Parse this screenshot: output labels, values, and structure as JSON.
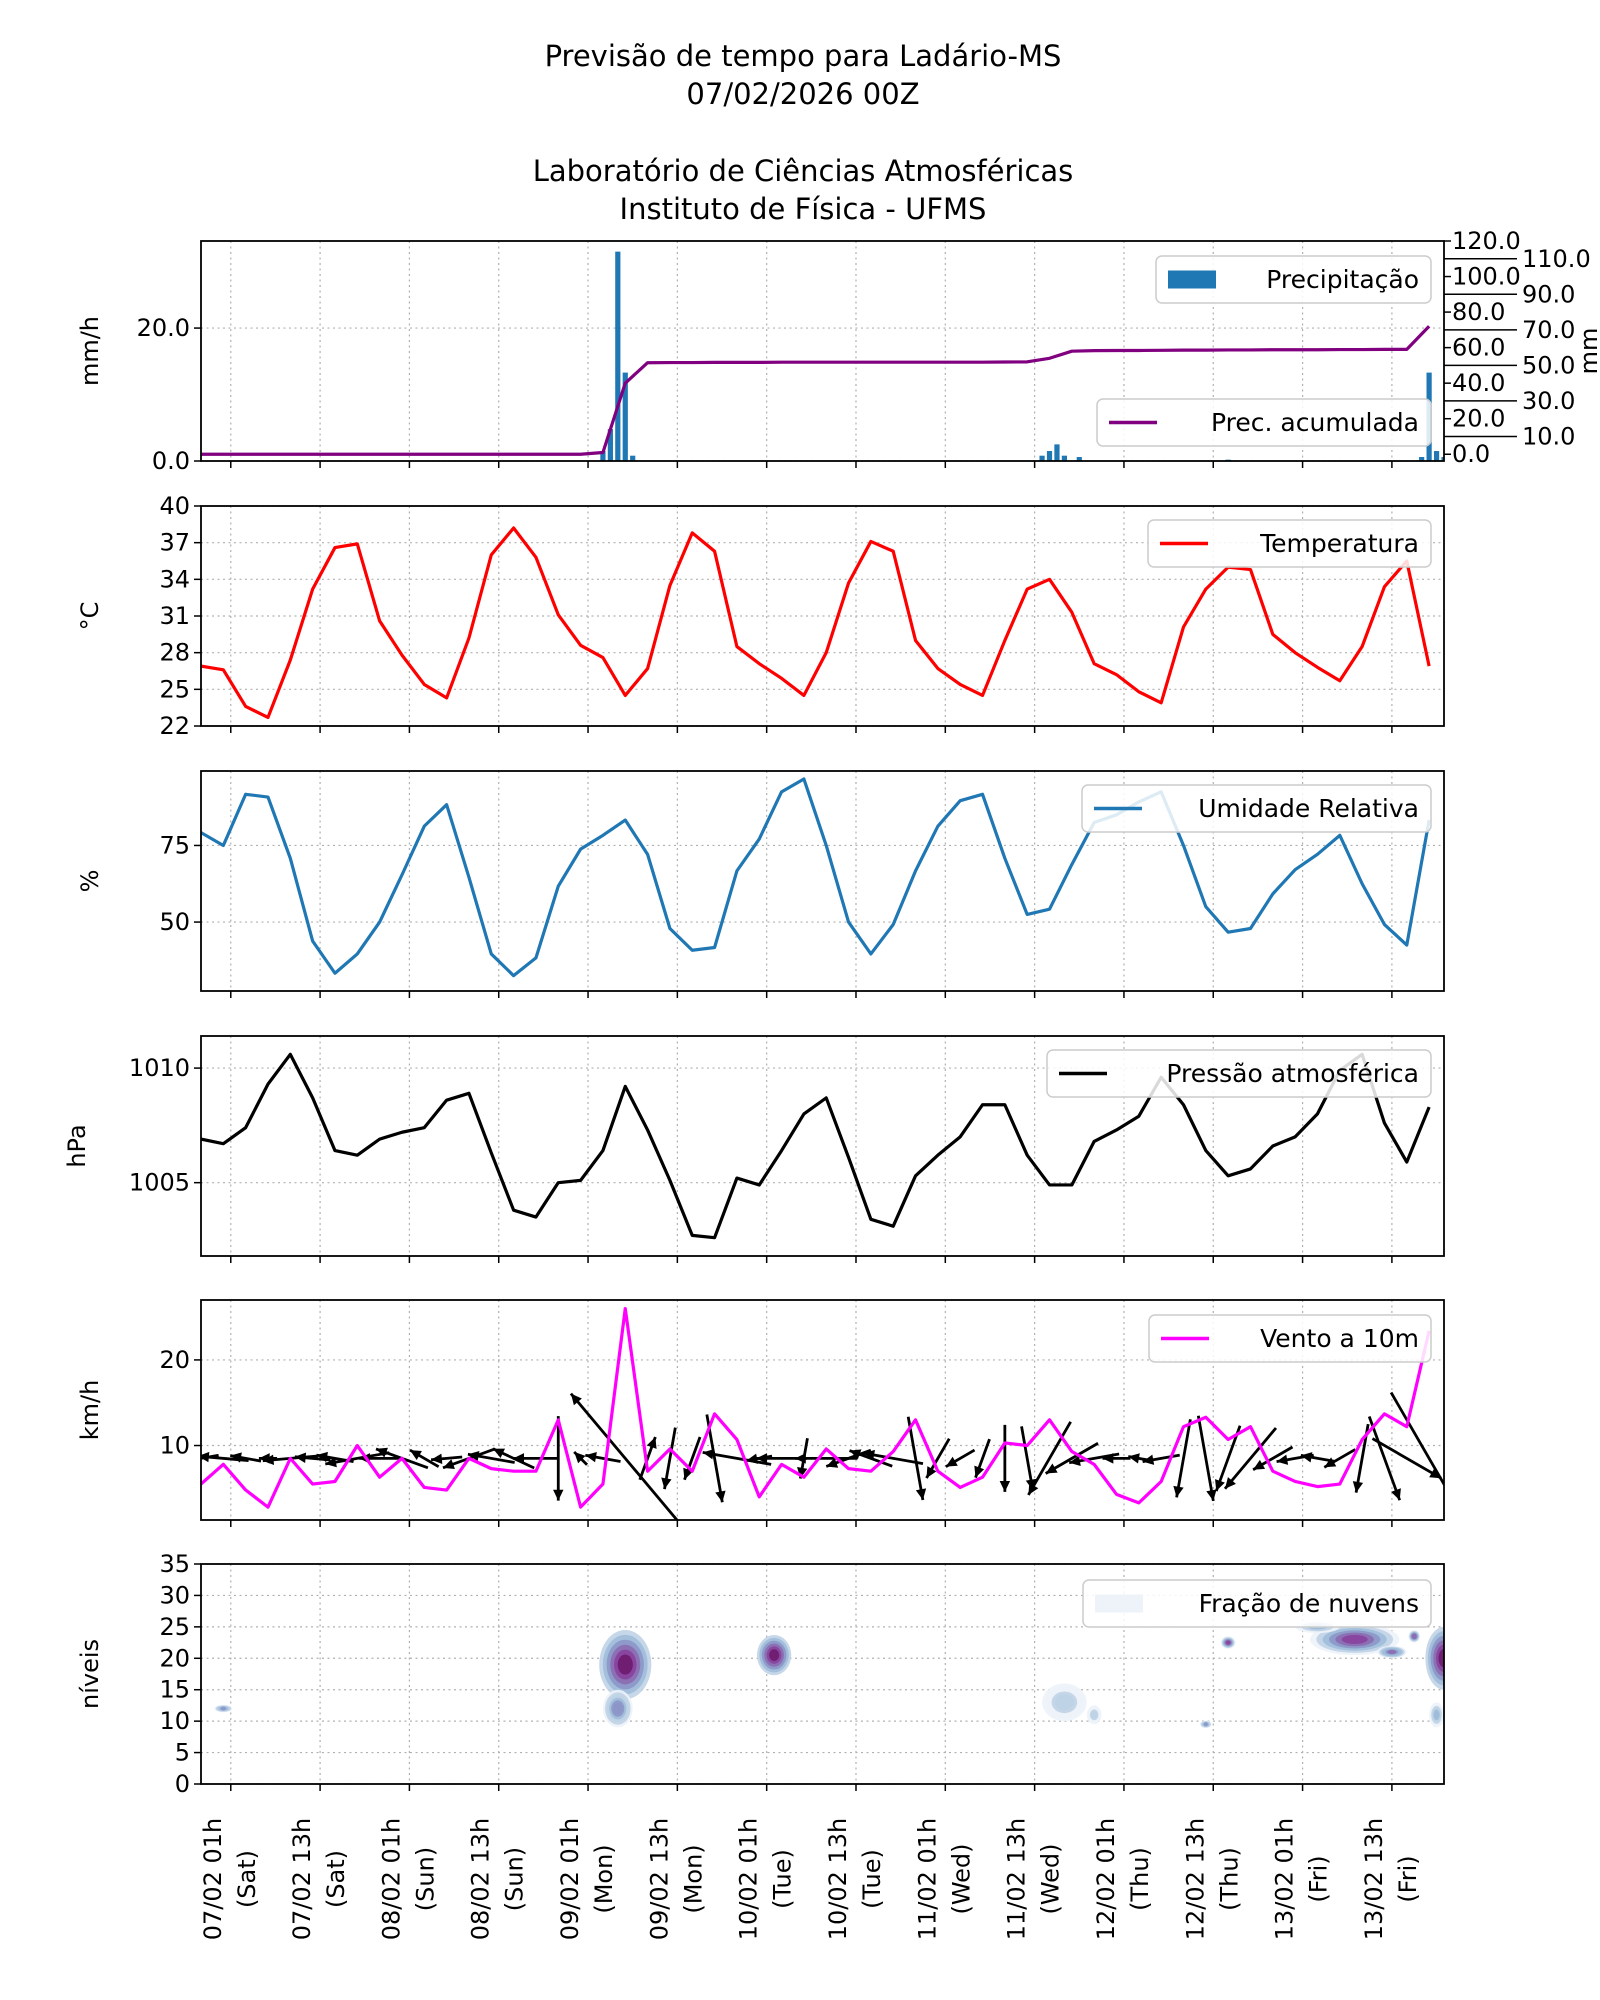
{
  "title": {
    "line1": "Previsão de tempo para Ladário-MS",
    "line2": "07/02/2026 00Z",
    "line3": "Laboratório de Ciências Atmosféricas",
    "line4": "Instituto de Física - UFMS"
  },
  "x_axis": {
    "range": [
      "06/02 21h",
      "13/02 20h"
    ],
    "ticks": [
      {
        "time": "07/02 01h",
        "label": "07/02 01h",
        "day": "(Sat)"
      },
      {
        "time": "07/02 13h",
        "label": "07/02 13h",
        "day": "(Sat)"
      },
      {
        "time": "08/02 01h",
        "label": "08/02 01h",
        "day": "(Sun)"
      },
      {
        "time": "08/02 13h",
        "label": "08/02 13h",
        "day": "(Sun)"
      },
      {
        "time": "09/02 01h",
        "label": "09/02 01h",
        "day": "(Mon)"
      },
      {
        "time": "09/02 13h",
        "label": "09/02 13h",
        "day": "(Mon)"
      },
      {
        "time": "10/02 01h",
        "label": "10/02 01h",
        "day": "(Tue)"
      },
      {
        "time": "10/02 13h",
        "label": "10/02 13h",
        "day": "(Tue)"
      },
      {
        "time": "11/02 01h",
        "label": "11/02 01h",
        "day": "(Wed)"
      },
      {
        "time": "11/02 13h",
        "label": "11/02 13h",
        "day": "(Wed)"
      },
      {
        "time": "12/02 01h",
        "label": "12/02 01h",
        "day": "(Thu)"
      },
      {
        "time": "12/02 13h",
        "label": "12/02 13h",
        "day": "(Thu)"
      },
      {
        "time": "13/02 01h",
        "label": "13/02 01h",
        "day": "(Fri)"
      },
      {
        "time": "13/02 13h",
        "label": "13/02 13h",
        "day": "(Fri)"
      }
    ],
    "grid": true
  },
  "times": [
    "06/02 21h",
    "07/02 00h",
    "07/02 03h",
    "07/02 06h",
    "07/02 09h",
    "07/02 12h",
    "07/02 15h",
    "07/02 18h",
    "07/02 21h",
    "08/02 00h",
    "08/02 03h",
    "08/02 06h",
    "08/02 09h",
    "08/02 12h",
    "08/02 15h",
    "08/02 18h",
    "08/02 21h",
    "09/02 00h",
    "09/02 03h",
    "09/02 06h",
    "09/02 09h",
    "09/02 12h",
    "09/02 15h",
    "09/02 18h",
    "09/02 21h",
    "10/02 00h",
    "10/02 03h",
    "10/02 06h",
    "10/02 09h",
    "10/02 12h",
    "10/02 15h",
    "10/02 18h",
    "10/02 21h",
    "11/02 00h",
    "11/02 03h",
    "11/02 06h",
    "11/02 09h",
    "11/02 12h",
    "11/02 15h",
    "11/02 18h",
    "11/02 21h",
    "12/02 00h",
    "12/02 03h",
    "12/02 06h",
    "12/02 09h",
    "12/02 12h",
    "12/02 15h",
    "12/02 18h",
    "12/02 21h",
    "13/02 00h",
    "13/02 03h",
    "13/02 06h",
    "13/02 09h",
    "13/02 12h",
    "13/02 15h",
    "13/02 18h"
  ],
  "chart_data": [
    {
      "id": "precip",
      "type": "bar",
      "ylabel": "mm/h",
      "ylim": [
        0,
        33.1
      ],
      "yticks": [
        0,
        20
      ],
      "ytick_labels": [
        "0.0",
        "20.0"
      ],
      "bars": [
        {
          "time": "09/02 03h",
          "value": 1.5
        },
        {
          "time": "09/02 04h",
          "value": 4.8
        },
        {
          "time": "09/02 05h",
          "value": 31.5
        },
        {
          "time": "09/02 06h",
          "value": 13.3
        },
        {
          "time": "09/02 07h",
          "value": 0.8
        },
        {
          "time": "11/02 14h",
          "value": 0.8
        },
        {
          "time": "11/02 15h",
          "value": 1.5
        },
        {
          "time": "11/02 16h",
          "value": 2.5
        },
        {
          "time": "11/02 17h",
          "value": 0.8
        },
        {
          "time": "11/02 19h",
          "value": 0.6
        },
        {
          "time": "12/02 15h",
          "value": 0.2
        },
        {
          "time": "13/02 17h",
          "value": 0.6
        },
        {
          "time": "13/02 18h",
          "value": 13.3
        },
        {
          "time": "13/02 19h",
          "value": 1.5
        },
        {
          "time": "13/02 20h",
          "value": 0.6
        }
      ],
      "bar_color": "#1f77b4",
      "legend": {
        "label": "Precipitação",
        "position": "upper right"
      },
      "secondary_axis": {
        "type": "line",
        "ylabel": "mm",
        "ylim": [
          -3.8,
          120
        ],
        "yticks": [
          0,
          10,
          20,
          30,
          40,
          50,
          60,
          70,
          80,
          90,
          100,
          110,
          120
        ],
        "ytick_labels": [
          "0.0",
          "10.0",
          "20.0",
          "30.0",
          "40.0",
          "50.0",
          "60.0",
          "70.0",
          "80.0",
          "90.0",
          "100.0",
          "110.0",
          "120.0"
        ],
        "values": [
          0,
          0,
          0,
          0,
          0,
          0,
          0,
          0,
          0,
          0,
          0,
          0,
          0,
          0,
          0,
          0,
          0,
          0,
          1,
          40,
          51.5,
          51.6,
          51.6,
          51.7,
          51.7,
          51.7,
          51.8,
          51.8,
          51.8,
          51.8,
          51.8,
          51.8,
          51.8,
          51.8,
          51.8,
          51.8,
          51.9,
          52,
          54,
          58,
          58.3,
          58.4,
          58.4,
          58.5,
          58.6,
          58.6,
          58.7,
          58.7,
          58.8,
          58.8,
          58.8,
          58.9,
          58.9,
          59,
          59,
          72
        ],
        "color": "#800080",
        "legend": {
          "label": "Prec. acumulada",
          "position": "lower right"
        }
      }
    },
    {
      "id": "temp",
      "type": "line",
      "ylabel": "$^\\circ$C",
      "ylabel_display": "°C",
      "ylim": [
        22,
        40
      ],
      "yticks": [
        22,
        25,
        28,
        31,
        34,
        37,
        40
      ],
      "ytick_labels": [
        "22",
        "25",
        "28",
        "31",
        "34",
        "37",
        "40"
      ],
      "values": [
        26.9,
        26.6,
        23.6,
        22.7,
        27.4,
        33.2,
        36.6,
        36.9,
        30.6,
        27.8,
        25.4,
        24.3,
        29.2,
        36.0,
        38.2,
        35.8,
        31.1,
        28.6,
        27.6,
        24.5,
        26.7,
        33.5,
        37.8,
        36.3,
        28.5,
        27.1,
        25.9,
        24.5,
        28.0,
        33.7,
        37.1,
        36.3,
        29.0,
        26.7,
        25.4,
        24.5,
        29.0,
        33.2,
        34.0,
        31.3,
        27.1,
        26.2,
        24.8,
        23.9,
        30.1,
        33.2,
        35.0,
        34.8,
        29.5,
        28.0,
        26.8,
        25.7,
        28.5,
        33.4,
        35.5,
        26.9
      ],
      "color": "#ff0000",
      "legend": {
        "label": "Temperatura",
        "position": "upper right"
      }
    },
    {
      "id": "rh",
      "type": "line",
      "ylabel": "%",
      "ylim": [
        27.5,
        99.3
      ],
      "yticks": [
        50,
        75
      ],
      "ytick_labels": [
        "50",
        "75"
      ],
      "values": [
        79.2,
        75.0,
        91.7,
        90.8,
        70.8,
        43.8,
        33.3,
        39.6,
        50,
        65.4,
        81.3,
        88.3,
        64.6,
        39.6,
        32.5,
        38.3,
        61.7,
        73.8,
        78.3,
        83.3,
        72.1,
        47.9,
        40.8,
        41.7,
        66.7,
        77.1,
        92.5,
        96.7,
        75,
        50,
        39.6,
        49.2,
        66.7,
        81.3,
        89.6,
        91.7,
        70.8,
        52.5,
        54.2,
        68.8,
        82.5,
        85,
        89.2,
        92.5,
        75,
        55,
        46.7,
        47.9,
        59.2,
        67.1,
        72.1,
        78.3,
        62.5,
        49.2,
        42.5,
        83.3
      ],
      "color": "#1f77b4",
      "legend": {
        "label": "Umidade Relativa",
        "position": "upper right"
      }
    },
    {
      "id": "pressure",
      "type": "line",
      "ylabel": "hPa",
      "ylim": [
        1001.8,
        1011.4
      ],
      "yticks": [
        1005,
        1010
      ],
      "ytick_labels": [
        "1005",
        "1010"
      ],
      "values": [
        1006.9,
        1006.7,
        1007.4,
        1009.3,
        1010.6,
        1008.7,
        1006.4,
        1006.2,
        1006.9,
        1007.2,
        1007.4,
        1008.6,
        1008.9,
        1006.3,
        1003.8,
        1003.5,
        1005.0,
        1005.1,
        1006.4,
        1009.2,
        1007.3,
        1005.1,
        1002.7,
        1002.6,
        1005.2,
        1004.9,
        1006.4,
        1008.0,
        1008.7,
        1006.1,
        1003.4,
        1003.1,
        1005.3,
        1006.2,
        1007.0,
        1008.4,
        1008.4,
        1006.2,
        1004.9,
        1004.9,
        1006.8,
        1007.3,
        1007.9,
        1009.6,
        1008.4,
        1006.4,
        1005.3,
        1005.6,
        1006.6,
        1007.0,
        1008.0,
        1009.9,
        1010.6,
        1007.6,
        1005.9,
        1008.3
      ],
      "color": "#000000",
      "legend": {
        "label": "Pressão atmosférica",
        "position": "upper right"
      }
    },
    {
      "id": "wind",
      "type": "line",
      "ylabel": "km/h",
      "ylim": [
        1.3,
        27
      ],
      "yticks": [
        10,
        20
      ],
      "ytick_labels": [
        "10",
        "20"
      ],
      "values": [
        5.5,
        7.8,
        4.8,
        2.8,
        8.5,
        5.5,
        5.8,
        10,
        6.3,
        8.5,
        5.1,
        4.8,
        8.5,
        7.3,
        7,
        7,
        13,
        2.8,
        5.5,
        26,
        7,
        9.6,
        7,
        13.7,
        10.7,
        4,
        7.8,
        6.3,
        9.6,
        7.3,
        7,
        9.3,
        13,
        7,
        5.1,
        6.3,
        10.3,
        10,
        13,
        9.3,
        7.8,
        4.3,
        3.3,
        5.8,
        12.2,
        13.3,
        10.7,
        12.2,
        7,
        5.8,
        5.2,
        5.5,
        10.7,
        13.7,
        12.2,
        23.4
      ],
      "direction_deg": [
        80,
        95,
        100,
        90,
        85,
        95,
        100,
        80,
        90,
        110,
        120,
        85,
        70,
        100,
        115,
        90,
        0,
        135,
        100,
        140,
        200,
        10,
        20,
        350,
        100,
        80,
        90,
        10,
        90,
        70,
        110,
        100,
        350,
        30,
        60,
        20,
        0,
        350,
        30,
        60,
        80,
        90,
        100,
        80,
        10,
        350,
        20,
        40,
        60,
        80,
        100,
        60,
        10,
        340,
        300,
        330
      ],
      "color": "#ff00ff",
      "arrow_color": "#000000",
      "legend": {
        "label": "Vento a 10m",
        "position": "upper right"
      }
    },
    {
      "id": "clouds",
      "type": "heatmap",
      "ylabel": "níveis",
      "ylim": [
        0,
        35
      ],
      "yticks": [
        0,
        5,
        10,
        15,
        20,
        25,
        30,
        35
      ],
      "ytick_labels": [
        "0",
        "5",
        "10",
        "15",
        "20",
        "25",
        "30",
        "35"
      ],
      "colormap": [
        "#edf3f9",
        "#bfd3e6",
        "#9ebcda",
        "#8c96c6",
        "#8c6bb1",
        "#88419d",
        "#6e1a6b"
      ],
      "regions": [
        {
          "time": "07/02 00h",
          "level": 12,
          "time_span_h": 1.2,
          "level_span": 0.6,
          "max_fraction": 0.55
        },
        {
          "time": "09/02 06h",
          "level": 19,
          "time_span_h": 3.5,
          "level_span": 5.5,
          "max_fraction": 1.0
        },
        {
          "time": "09/02 05h",
          "level": 12,
          "time_span_h": 2,
          "level_span": 3,
          "max_fraction": 0.6
        },
        {
          "time": "10/02 02h",
          "level": 20.5,
          "time_span_h": 2.3,
          "level_span": 3.2,
          "max_fraction": 1.0
        },
        {
          "time": "11/02 17h",
          "level": 13,
          "time_span_h": 3,
          "level_span": 3,
          "max_fraction": 0.3
        },
        {
          "time": "11/02 21h",
          "level": 11,
          "time_span_h": 1,
          "level_span": 1.5,
          "max_fraction": 0.25
        },
        {
          "time": "12/02 12h",
          "level": 9.5,
          "time_span_h": 0.8,
          "level_span": 0.6,
          "max_fraction": 0.5
        },
        {
          "time": "12/02 15h",
          "level": 22.5,
          "time_span_h": 1,
          "level_span": 1,
          "max_fraction": 0.9
        },
        {
          "time": "13/02 08h",
          "level": 23,
          "time_span_h": 6,
          "level_span": 2.5,
          "max_fraction": 0.95
        },
        {
          "time": "13/02 03h",
          "level": 25,
          "time_span_h": 3,
          "level_span": 1,
          "max_fraction": 0.4
        },
        {
          "time": "13/02 13h",
          "level": 21,
          "time_span_h": 2,
          "level_span": 1,
          "max_fraction": 0.7
        },
        {
          "time": "13/02 16h",
          "level": 23.5,
          "time_span_h": 0.8,
          "level_span": 1,
          "max_fraction": 0.8
        },
        {
          "time": "13/02 20h",
          "level": 20,
          "time_span_h": 2.5,
          "level_span": 5,
          "max_fraction": 1.0
        },
        {
          "time": "13/02 19h",
          "level": 11,
          "time_span_h": 1,
          "level_span": 2,
          "max_fraction": 0.4
        }
      ],
      "legend": {
        "label": "Fração de nuvens",
        "position": "upper right",
        "swatch": "#edf3f9"
      }
    }
  ]
}
